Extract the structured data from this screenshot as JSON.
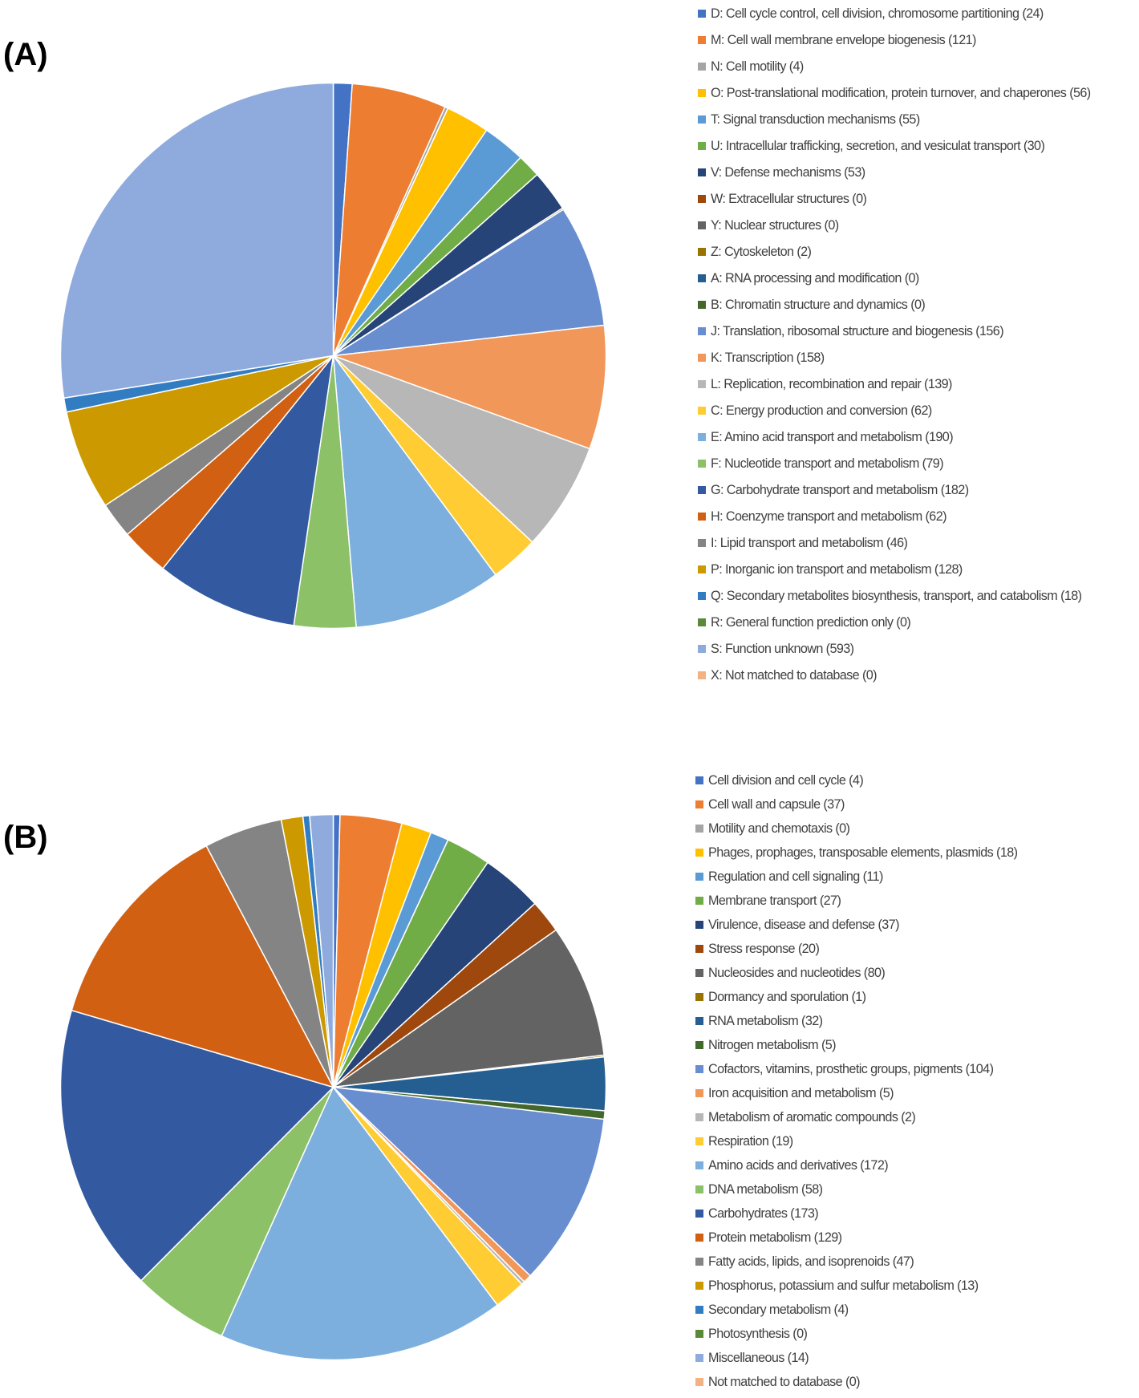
{
  "panel_a_label": "(A)",
  "panel_b_label": "(B)",
  "chart_data": [
    {
      "type": "pie",
      "panel": "(A)",
      "legend_position": "right",
      "categories": [
        "D: Cell cycle control, cell division, chromosome partitioning (24)",
        "M: Cell wall membrane envelope biogenesis (121)",
        "N: Cell motility (4)",
        "O: Post-translational modification, protein turnover, and chaperones (56)",
        "T: Signal transduction mechanisms (55)",
        "U: Intracellular trafficking, secretion, and vesiculat transport (30)",
        "V: Defense mechanisms (53)",
        "W: Extracellular structures (0)",
        "Y: Nuclear structures (0)",
        "Z: Cytoskeleton (2)",
        "A: RNA processing and modification (0)",
        "B: Chromatin structure and dynamics (0)",
        "J: Translation, ribosomal structure and biogenesis (156)",
        "K: Transcription (158)",
        "L: Replication, recombination and repair (139)",
        "C: Energy production and conversion (62)",
        "E: Amino acid transport and metabolism (190)",
        "F: Nucleotide transport and metabolism (79)",
        "G: Carbohydrate transport and metabolism (182)",
        "H: Coenzyme transport and metabolism (62)",
        "I: Lipid transport and metabolism (46)",
        "P: Inorganic ion transport and metabolism (128)",
        "Q: Secondary metabolites biosynthesis, transport, and catabolism (18)",
        "R: General function prediction only (0)",
        "S: Function unknown (593)",
        "X: Not matched to database (0)"
      ],
      "values": [
        24,
        121,
        4,
        56,
        55,
        30,
        53,
        0,
        0,
        2,
        0,
        0,
        156,
        158,
        139,
        62,
        190,
        79,
        182,
        62,
        46,
        128,
        18,
        0,
        593,
        0
      ],
      "colors": [
        "#4472C4",
        "#ED7D31",
        "#A5A5A5",
        "#FFC000",
        "#5B9BD5",
        "#70AD47",
        "#264478",
        "#9E480E",
        "#636363",
        "#997300",
        "#255E91",
        "#43682B",
        "#698ED0",
        "#F1975A",
        "#B7B7B7",
        "#FFCD33",
        "#7CAFDD",
        "#8CC168",
        "#335AA1",
        "#D26012",
        "#848484",
        "#CC9A00",
        "#327DC2",
        "#5A8A39",
        "#8FAADC",
        "#F4B183"
      ]
    },
    {
      "type": "pie",
      "panel": "(B)",
      "legend_position": "right",
      "categories": [
        "Cell division and cell cycle (4)",
        "Cell wall and capsule (37)",
        "Motility and chemotaxis (0)",
        "Phages, prophages, transposable elements, plasmids (18)",
        "Regulation and cell signaling (11)",
        "Membrane transport (27)",
        "Virulence, disease and defense (37)",
        "Stress response (20)",
        "Nucleosides and nucleotides (80)",
        "Dormancy and sporulation (1)",
        "RNA metabolism (32)",
        "Nitrogen metabolism (5)",
        "Cofactors, vitamins, prosthetic groups, pigments (104)",
        "Iron acquisition and metabolism (5)",
        "Metabolism of aromatic compounds (2)",
        "Respiration (19)",
        "Amino acids and derivatives (172)",
        "DNA metabolism (58)",
        "Carbohydrates (173)",
        "Protein metabolism (129)",
        "Fatty acids, lipids, and isoprenoids (47)",
        "Phosphorus, potassium and sulfur metabolism (13)",
        "Secondary metabolism (4)",
        "Photosynthesis (0)",
        "Miscellaneous (14)",
        "Not matched to database (0)"
      ],
      "values": [
        4,
        37,
        0,
        18,
        11,
        27,
        37,
        20,
        80,
        1,
        32,
        5,
        104,
        5,
        2,
        19,
        172,
        58,
        173,
        129,
        47,
        13,
        4,
        0,
        14,
        0
      ],
      "colors": [
        "#4472C4",
        "#ED7D31",
        "#A5A5A5",
        "#FFC000",
        "#5B9BD5",
        "#70AD47",
        "#264478",
        "#9E480E",
        "#636363",
        "#997300",
        "#255E91",
        "#43682B",
        "#698ED0",
        "#F1975A",
        "#B7B7B7",
        "#FFCD33",
        "#7CAFDD",
        "#8CC168",
        "#335AA1",
        "#D26012",
        "#848484",
        "#CC9A00",
        "#327DC2",
        "#5A8A39",
        "#8FAADC",
        "#F4B183"
      ]
    }
  ]
}
